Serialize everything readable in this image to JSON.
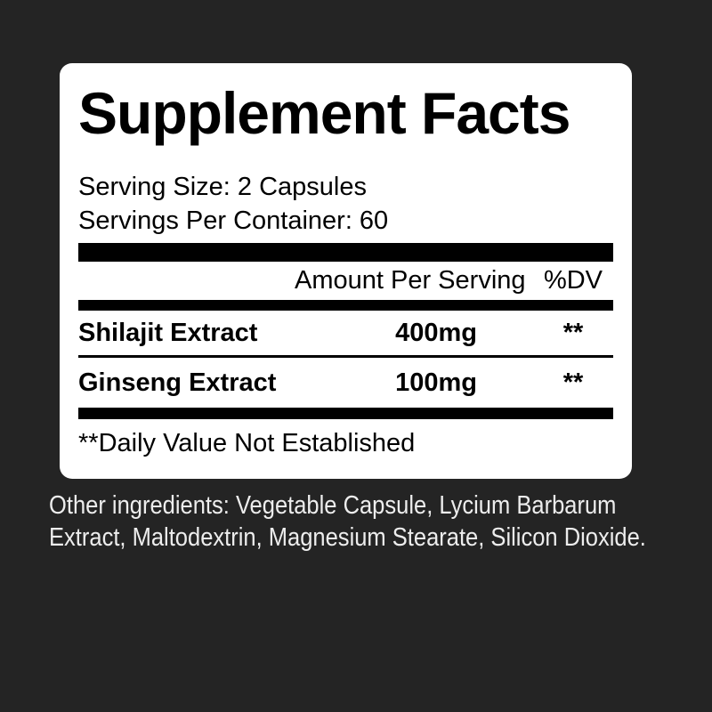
{
  "colors": {
    "page_background": "#242424",
    "panel_background": "#ffffff",
    "panel_text": "#000000",
    "outside_text": "#ededed"
  },
  "panel": {
    "title": "Supplement Facts",
    "serving_size": "Serving Size: 2 Capsules",
    "servings_per_container": "Servings Per Container: 60",
    "columns": {
      "amount_header": "Amount Per Serving",
      "dv_header": "%DV"
    },
    "rows": [
      {
        "name": "Shilajit Extract",
        "amount": "400mg",
        "dv": "**"
      },
      {
        "name": "Ginseng Extract",
        "amount": "100mg",
        "dv": "**"
      }
    ],
    "footnote": "**Daily Value Not Established"
  },
  "other_ingredients": "Other ingredients: Vegetable Capsule, Lycium Barbarum Extract, Maltodextrin, Magnesium Stearate, Silicon Dioxide."
}
